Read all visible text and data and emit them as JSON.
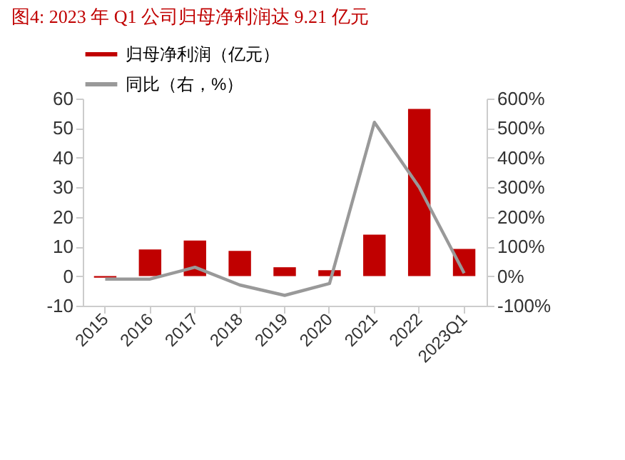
{
  "chart_data": {
    "type": "bar",
    "title": "图4:   2023 年 Q1 公司归母净利润达 9.21 亿元",
    "categories": [
      "2015",
      "2016",
      "2017",
      "2018",
      "2019",
      "2020",
      "2021",
      "2022",
      "2023Q1"
    ],
    "series": [
      {
        "name": "归母净利润（亿元）",
        "color": "#c00000",
        "values": [
          -0.5,
          9,
          12,
          8.5,
          3,
          2,
          14,
          56.5,
          9.2
        ]
      },
      {
        "name": "同比（右，%）",
        "type": "line",
        "axis": "y2",
        "color": "#999999",
        "values": [
          -10,
          -10,
          30,
          -30,
          -65,
          -25,
          520,
          300,
          10
        ]
      }
    ],
    "ylim": [
      -10,
      60
    ],
    "yticks": [
      -10,
      0,
      10,
      20,
      30,
      40,
      50,
      60
    ],
    "y2lim": [
      -100,
      600
    ],
    "y2ticks": [
      {
        "value": -100,
        "label": "-100%"
      },
      {
        "value": 0,
        "label": "0%"
      },
      {
        "value": 100,
        "label": "100%"
      },
      {
        "value": 200,
        "label": "200%"
      },
      {
        "value": 300,
        "label": "300%"
      },
      {
        "value": 400,
        "label": "400%"
      },
      {
        "value": 500,
        "label": "500%"
      },
      {
        "value": 600,
        "label": "600%"
      }
    ],
    "legend": "top",
    "grid": false,
    "marker": "none",
    "line_style": "solid"
  }
}
